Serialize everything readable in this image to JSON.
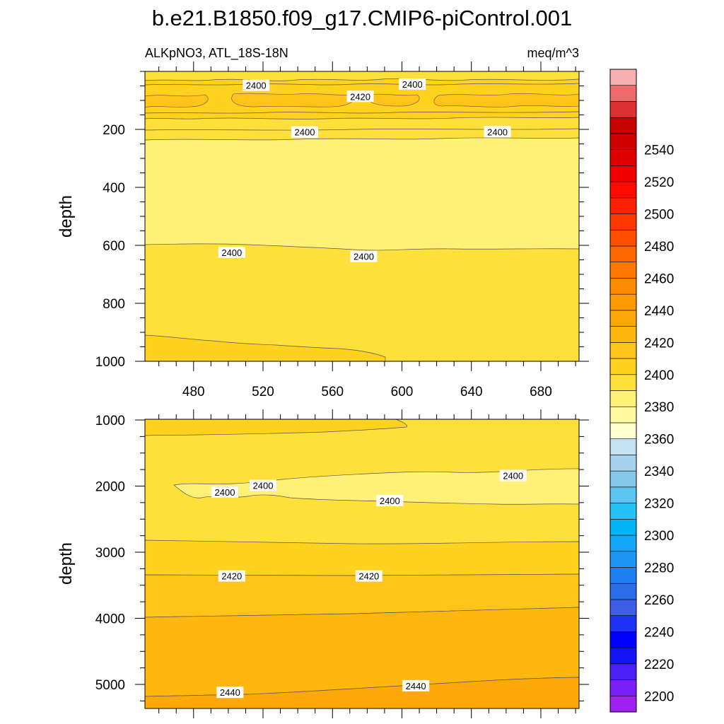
{
  "title": "b.e21.B1850.f09_g17.CMIP6-piControl.001",
  "subtitle_left": "ALKpNO3, ATL_18S-18N",
  "subtitle_right": "meq/m^3",
  "chart_data": [
    {
      "type": "heatmap",
      "panel": "upper",
      "ylabel": "depth",
      "xlim": [
        452,
        702
      ],
      "ylim": [
        1000,
        0
      ],
      "x_ticks": [
        480,
        520,
        560,
        600,
        640,
        680
      ],
      "y_ticks": [
        200,
        400,
        600,
        800,
        1000
      ],
      "contour_labels": [
        {
          "x": 516,
          "y": 48,
          "text": "2400"
        },
        {
          "x": 606,
          "y": 44,
          "text": "2400"
        },
        {
          "x": 576,
          "y": 86,
          "text": "2420"
        },
        {
          "x": 544,
          "y": 209,
          "text": "2400"
        },
        {
          "x": 655,
          "y": 208,
          "text": "2400"
        },
        {
          "x": 502,
          "y": 624,
          "text": "2400"
        },
        {
          "x": 578,
          "y": 638,
          "text": "2400"
        }
      ],
      "bands": [
        {
          "level": "2400-2410",
          "from_depth": 0,
          "to_depth": 30
        },
        {
          "level": "2410-2420",
          "from_depth": 30,
          "to_depth": 130
        },
        {
          "level": "2400-2410",
          "from_depth": 130,
          "to_depth": 210
        },
        {
          "level": "2390-2400",
          "from_depth": 210,
          "to_depth": 615
        },
        {
          "level": "2400-2410",
          "from_depth": 615,
          "to_depth": 1000
        },
        {
          "level": "2410-2420",
          "from_depth": 925,
          "to_depth": 1000,
          "x_max": 590
        }
      ]
    },
    {
      "type": "heatmap",
      "panel": "lower",
      "ylabel": "depth",
      "xlim": [
        452,
        702
      ],
      "ylim": [
        5350,
        1000
      ],
      "y_ticks": [
        1000,
        2000,
        3000,
        4000,
        5000
      ],
      "contour_labels": [
        {
          "x": 520,
          "y": 1990,
          "text": "2400"
        },
        {
          "x": 498,
          "y": 2090,
          "text": "2400"
        },
        {
          "x": 664,
          "y": 1840,
          "text": "2400"
        },
        {
          "x": 593,
          "y": 2220,
          "text": "2400"
        },
        {
          "x": 502,
          "y": 3360,
          "text": "2420"
        },
        {
          "x": 581,
          "y": 3360,
          "text": "2420"
        },
        {
          "x": 501,
          "y": 5120,
          "text": "2440"
        },
        {
          "x": 608,
          "y": 5020,
          "text": "2440"
        }
      ],
      "bands": [
        {
          "level": "2400-2410",
          "from_depth": 1000,
          "to_depth": 2850
        },
        {
          "level": "2390-2400",
          "from_depth": 1800,
          "to_depth": 2250,
          "x_min": 470
        },
        {
          "level": "2410-2420",
          "from_depth": 2850,
          "to_depth": 3350
        },
        {
          "level": "2420-2430",
          "from_depth": 3350,
          "to_depth": 3950
        },
        {
          "level": "2430-2440",
          "from_depth": 3950,
          "to_depth": 5100
        },
        {
          "level": "2440-2450",
          "from_depth": 5100,
          "to_depth": 5350
        }
      ]
    }
  ],
  "colorbar": {
    "labels": [
      "2200",
      "2220",
      "2240",
      "2260",
      "2280",
      "2300",
      "2320",
      "2340",
      "2360",
      "2380",
      "2400",
      "2420",
      "2440",
      "2460",
      "2480",
      "2500",
      "2520",
      "2540"
    ],
    "colors": [
      "#a020f0",
      "#7a1ff5",
      "#4a1ff5",
      "#1414f5",
      "#0000ff",
      "#1e32f5",
      "#3f5ee8",
      "#2b6de8",
      "#1e80f0",
      "#1e96f5",
      "#14a6f8",
      "#00b4f8",
      "#22c4f5",
      "#5dc6f0",
      "#87c8ea",
      "#a6d2ec",
      "#c2e2f2",
      "#ffffd0",
      "#fff8a0",
      "#fff078",
      "#ffe03a",
      "#ffd21e",
      "#ffc31a",
      "#ffb60f",
      "#ffa80a",
      "#ff9a00",
      "#ff8a00",
      "#ff7800",
      "#ff6600",
      "#ff5000",
      "#ff3800",
      "#ff2000",
      "#ff0a00",
      "#f00000",
      "#e00000",
      "#d00000",
      "#c80000",
      "#dd3030",
      "#ec6a6a",
      "#f8b0b0"
    ]
  }
}
